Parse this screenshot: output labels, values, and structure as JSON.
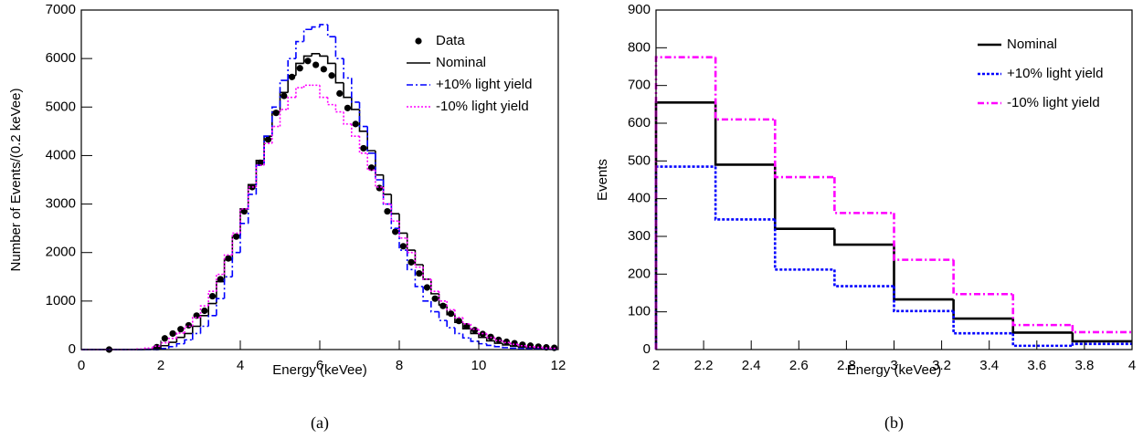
{
  "chart_data": [
    {
      "type": "histogram",
      "caption": "(a)",
      "x_label": "Energy (keVee)",
      "y_label": "Number of Events/(0.2 keVee)",
      "xlim": [
        0,
        12
      ],
      "ylim": [
        0,
        7000
      ],
      "xticks": [
        0,
        2,
        4,
        6,
        8,
        10,
        12
      ],
      "yticks": [
        0,
        1000,
        2000,
        3000,
        4000,
        5000,
        6000,
        7000
      ],
      "bins": [
        0,
        0.2,
        0.4,
        0.6,
        0.8,
        1,
        1.2,
        1.4,
        1.6,
        1.8,
        2,
        2.2,
        2.4,
        2.6,
        2.8,
        3,
        3.2,
        3.4,
        3.6,
        3.8,
        4,
        4.2,
        4.4,
        4.6,
        4.8,
        5,
        5.2,
        5.4,
        5.6,
        5.8,
        6,
        6.2,
        6.4,
        6.6,
        6.8,
        7,
        7.2,
        7.4,
        7.6,
        7.8,
        8,
        8.2,
        8.4,
        8.6,
        8.8,
        9,
        9.2,
        9.4,
        9.6,
        9.8,
        10,
        10.2,
        10.4,
        10.6,
        10.8,
        11,
        11.2,
        11.4,
        11.6,
        11.8,
        12
      ],
      "legend": "upper right",
      "series": [
        {
          "name": "Data",
          "style": "markers",
          "color": "#000000",
          "x": [
            0.7,
            1.9,
            2.1,
            2.3,
            2.5,
            2.7,
            2.9,
            3.1,
            3.3,
            3.5,
            3.7,
            3.9,
            4.1,
            4.3,
            4.5,
            4.7,
            4.9,
            5.1,
            5.3,
            5.5,
            5.7,
            5.9,
            6.1,
            6.3,
            6.5,
            6.7,
            6.9,
            7.1,
            7.3,
            7.5,
            7.7,
            7.9,
            8.1,
            8.3,
            8.5,
            8.7,
            8.9,
            9.1,
            9.3,
            9.5,
            9.7,
            9.9,
            10.1,
            10.3,
            10.5,
            10.7,
            10.9,
            11.1,
            11.3,
            11.5,
            11.7,
            11.9
          ],
          "values": [
            0,
            50,
            230,
            330,
            420,
            500,
            700,
            800,
            1100,
            1450,
            1880,
            2330,
            2850,
            3350,
            3850,
            4330,
            4880,
            5230,
            5620,
            5800,
            5950,
            5870,
            5780,
            5650,
            5280,
            4980,
            4650,
            4150,
            3750,
            3330,
            2850,
            2430,
            2130,
            1800,
            1570,
            1280,
            1050,
            900,
            740,
            590,
            480,
            400,
            320,
            260,
            200,
            160,
            130,
            100,
            80,
            60,
            45,
            35
          ]
        },
        {
          "name": "Nominal",
          "style": "step",
          "color": "#000000",
          "dash": "",
          "values": [
            0,
            0,
            0,
            0,
            0,
            0,
            0,
            0,
            5,
            20,
            80,
            150,
            250,
            330,
            480,
            700,
            950,
            1400,
            1850,
            2350,
            2900,
            3400,
            3900,
            4400,
            4900,
            5300,
            5650,
            5900,
            6050,
            6100,
            6050,
            5900,
            5500,
            5200,
            4950,
            4500,
            4100,
            3600,
            3200,
            2800,
            2400,
            2050,
            1750,
            1450,
            1150,
            920,
            720,
            560,
            430,
            330,
            250,
            180,
            130,
            95,
            70,
            50,
            35,
            25,
            18,
            12
          ]
        },
        {
          "name": "+10% light yield",
          "style": "step",
          "color": "#0000ff",
          "dash": "7 3 2 3",
          "values": [
            0,
            0,
            0,
            0,
            0,
            0,
            0,
            0,
            0,
            0,
            20,
            60,
            120,
            200,
            330,
            480,
            700,
            1050,
            1500,
            2000,
            2600,
            3200,
            3800,
            4400,
            5000,
            5550,
            6000,
            6350,
            6600,
            6650,
            6700,
            6450,
            6000,
            5600,
            5100,
            4600,
            4050,
            3500,
            3000,
            2500,
            2050,
            1650,
            1300,
            1000,
            780,
            600,
            450,
            330,
            240,
            170,
            120,
            85,
            60,
            40,
            28,
            19,
            13,
            9,
            6,
            4
          ]
        },
        {
          "name": "-10% light yield",
          "style": "step",
          "color": "#ff00ff",
          "dash": "2 2",
          "values": [
            0,
            0,
            0,
            0,
            0,
            0,
            0,
            10,
            30,
            70,
            140,
            230,
            340,
            480,
            660,
            900,
            1200,
            1550,
            1950,
            2400,
            2900,
            3350,
            3800,
            4250,
            4600,
            4950,
            5200,
            5400,
            5450,
            5450,
            5200,
            5050,
            4900,
            4650,
            4400,
            4050,
            3700,
            3350,
            3000,
            2650,
            2300,
            2000,
            1700,
            1450,
            1200,
            1000,
            820,
            660,
            530,
            420,
            330,
            250,
            190,
            145,
            110,
            80,
            60,
            45,
            32,
            24
          ]
        }
      ]
    },
    {
      "type": "histogram",
      "caption": "(b)",
      "x_label": "Energy (keVee)",
      "y_label": "Events",
      "xlim": [
        2,
        4
      ],
      "ylim": [
        0,
        900
      ],
      "xticks": [
        2,
        2.2,
        2.4,
        2.6,
        2.8,
        3,
        3.2,
        3.4,
        3.6,
        3.8,
        4
      ],
      "yticks": [
        0,
        100,
        200,
        300,
        400,
        500,
        600,
        700,
        800,
        900
      ],
      "bins": [
        2,
        2.25,
        2.5,
        2.75,
        3,
        3.25,
        3.5,
        3.75,
        4
      ],
      "legend": "upper right",
      "series": [
        {
          "name": "Nominal",
          "style": "step",
          "color": "#000000",
          "dash": "",
          "values": [
            655,
            490,
            320,
            278,
            133,
            82,
            45,
            22
          ]
        },
        {
          "name": "+10% light yield",
          "style": "step",
          "color": "#0000ff",
          "dash": "3 2",
          "values": [
            485,
            345,
            212,
            168,
            102,
            43,
            10,
            15
          ]
        },
        {
          "name": "-10% light yield",
          "style": "step",
          "color": "#ff00ff",
          "dash": "7 3 2 3",
          "values": [
            775,
            610,
            457,
            362,
            238,
            147,
            65,
            46
          ]
        }
      ]
    }
  ]
}
